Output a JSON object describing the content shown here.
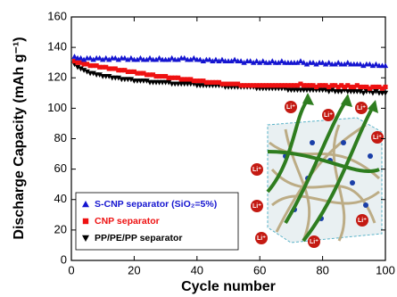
{
  "chart_data": {
    "type": "scatter",
    "xlabel": "Cycle number",
    "ylabel": "Discharge Capacity (mAh g⁻¹)",
    "xlim": [
      0,
      100
    ],
    "xticks": [
      0,
      20,
      40,
      60,
      80,
      100
    ],
    "ylim": [
      0,
      160
    ],
    "yticks": [
      0,
      20,
      40,
      60,
      80,
      100,
      120,
      140,
      160
    ],
    "legend": "lower left",
    "annotations": [
      "Li⁺",
      "Li⁺",
      "Li⁺",
      "Li⁺",
      "Li⁺",
      "Li⁺",
      "Li⁺",
      "Li⁺",
      "Li⁺"
    ],
    "x": [
      1,
      2,
      3,
      4,
      5,
      6,
      7,
      8,
      9,
      10,
      11,
      12,
      13,
      14,
      15,
      16,
      17,
      18,
      19,
      20,
      21,
      22,
      23,
      24,
      25,
      26,
      27,
      28,
      29,
      30,
      31,
      32,
      33,
      34,
      35,
      36,
      37,
      38,
      39,
      40,
      41,
      42,
      43,
      44,
      45,
      46,
      47,
      48,
      49,
      50,
      51,
      52,
      53,
      54,
      55,
      56,
      57,
      58,
      59,
      60,
      61,
      62,
      63,
      64,
      65,
      66,
      67,
      68,
      69,
      70,
      71,
      72,
      73,
      74,
      75,
      76,
      77,
      78,
      79,
      80,
      81,
      82,
      83,
      84,
      85,
      86,
      87,
      88,
      89,
      90,
      91,
      92,
      93,
      94,
      95,
      96,
      97,
      98,
      99,
      100
    ],
    "series": [
      {
        "name": "S-CNP separator (SiO₂=5%)",
        "color": "#1515d0",
        "marker": "triangle-up",
        "values": [
          134,
          133,
          133,
          132,
          133,
          133,
          132,
          133,
          133,
          132,
          133,
          132,
          133,
          133,
          132,
          133,
          133,
          132,
          133,
          132,
          132,
          133,
          132,
          132,
          133,
          132,
          132,
          133,
          132,
          132,
          132,
          133,
          132,
          132,
          133,
          133,
          132,
          132,
          133,
          132,
          132,
          131,
          132,
          132,
          131,
          132,
          131,
          132,
          131,
          131,
          131,
          132,
          131,
          131,
          130,
          131,
          131,
          130,
          131,
          130,
          131,
          130,
          130,
          131,
          130,
          130,
          131,
          130,
          130,
          130,
          130,
          130,
          131,
          130,
          129,
          130,
          130,
          129,
          130,
          130,
          129,
          130,
          129,
          129,
          130,
          129,
          129,
          130,
          129,
          129,
          129,
          129,
          128,
          129,
          129,
          128,
          129,
          128,
          128,
          128
        ]
      },
      {
        "name": "CNP separator",
        "color": "#ee1111",
        "marker": "square",
        "values": [
          131,
          130,
          130,
          129,
          129,
          128,
          128,
          128,
          127,
          127,
          127,
          126,
          126,
          126,
          125,
          125,
          125,
          124,
          124,
          124,
          123,
          123,
          123,
          122,
          122,
          122,
          121,
          121,
          121,
          121,
          120,
          120,
          120,
          120,
          119,
          119,
          119,
          119,
          118,
          118,
          118,
          118,
          117,
          117,
          117,
          117,
          117,
          116,
          116,
          116,
          116,
          116,
          116,
          115,
          115,
          115,
          115,
          115,
          115,
          115,
          115,
          115,
          115,
          115,
          115,
          115,
          115,
          115,
          115,
          115,
          115,
          115,
          116,
          115,
          115,
          115,
          115,
          114,
          115,
          115,
          115,
          114,
          115,
          115,
          114,
          115,
          114,
          115,
          114,
          114,
          115,
          114,
          114,
          114,
          113,
          114,
          114,
          114,
          113,
          114
        ]
      },
      {
        "name": "PP/PE/PP separator",
        "color": "#000000",
        "marker": "triangle-down",
        "values": [
          129,
          127,
          126,
          125,
          124,
          123,
          123,
          122,
          122,
          121,
          121,
          121,
          120,
          120,
          120,
          119,
          119,
          119,
          119,
          118,
          118,
          118,
          118,
          118,
          117,
          117,
          117,
          117,
          117,
          117,
          117,
          116,
          116,
          116,
          116,
          116,
          116,
          116,
          116,
          115,
          115,
          115,
          115,
          115,
          115,
          115,
          115,
          115,
          114,
          114,
          114,
          114,
          114,
          114,
          114,
          114,
          114,
          114,
          113,
          113,
          113,
          113,
          113,
          113,
          113,
          113,
          113,
          113,
          112,
          112,
          112,
          112,
          112,
          112,
          112,
          112,
          112,
          112,
          112,
          112,
          112,
          111,
          112,
          111,
          111,
          111,
          112,
          111,
          111,
          111,
          111,
          111,
          110,
          111,
          111,
          110,
          111,
          110,
          110,
          110
        ]
      }
    ]
  }
}
